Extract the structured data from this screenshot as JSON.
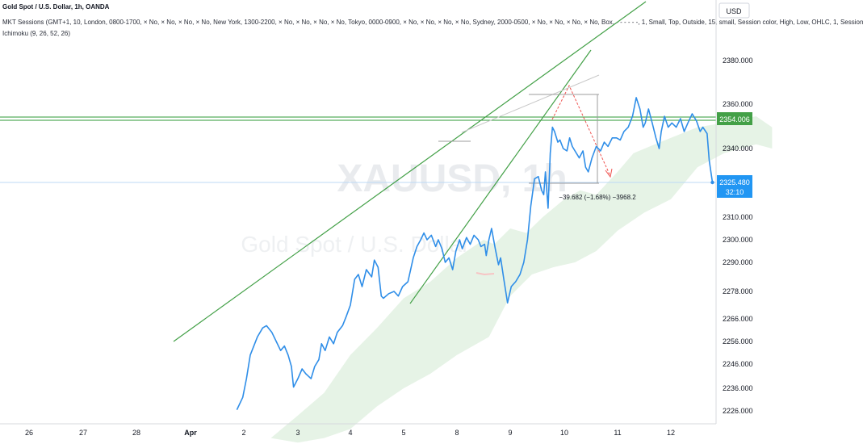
{
  "header": {
    "title": "Gold Spot / U.S. Dollar, 1h, OANDA",
    "sessions": "MKT Sessions (GMT+1, 10, London, 0800-1700, × No, × No, × No, × No, New York, 1300-2200, × No, × No, × No, × No, Tokyo, 0000-0900, × No, × No, × No, × No, Sydney, 2000-0500, × No, × No, × No, × No, Box, - - - - - -, 1, Small, Top, Outside, 15, small, Session color, High, Low, OHLC, 1, Session",
    "ichimoku": "Ichimoku (9, 26, 52, 26)"
  },
  "watermark": {
    "symbol": "XAUUSD, 1h",
    "name": "Gold Spot / U.S. Dollar"
  },
  "currency_button": "USD",
  "price_badges": {
    "green": "2354.006",
    "blue_price": "2325.480",
    "blue_timer": "32:10"
  },
  "measurement_label": "−39.682 (−1.68%) −3968.2",
  "colors": {
    "price_line": "#2f8ee8",
    "trend_lines": "#43a047",
    "cloud": "#e6f3e6",
    "level_line": "#2e9a35",
    "blue_badge": "#2196f3",
    "measure_arrow": "#ef5350"
  },
  "chart_data": {
    "type": "line",
    "title": "Gold Spot / U.S. Dollar, 1h, OANDA",
    "y_axis": {
      "ticks": [
        2226.0,
        2236.0,
        2246.0,
        2256.0,
        2266.0,
        2278.0,
        2290.0,
        2300.0,
        2310.0,
        2325.48,
        2340.0,
        2354.006,
        2360.0,
        2380.0
      ]
    },
    "x_axis": {
      "ticks": [
        "26",
        "27",
        "28",
        "Apr",
        "2",
        "3",
        "4",
        "5",
        "8",
        "9",
        "10",
        "11",
        "12"
      ]
    },
    "series": [
      {
        "values": [
          [
            3.87,
            2226.5
          ],
          [
            3.98,
            2232
          ],
          [
            4.05,
            2240
          ],
          [
            4.12,
            2250
          ],
          [
            4.25,
            2258
          ],
          [
            4.35,
            2262
          ],
          [
            4.42,
            2263
          ],
          [
            4.52,
            2260
          ],
          [
            4.6,
            2256
          ],
          [
            4.68,
            2252
          ],
          [
            4.75,
            2254
          ],
          [
            4.82,
            2250
          ],
          [
            4.88,
            2245
          ],
          [
            4.92,
            2236.5
          ],
          [
            5.0,
            2240
          ],
          [
            5.08,
            2244
          ],
          [
            5.15,
            2242
          ],
          [
            5.25,
            2240
          ],
          [
            5.32,
            2245
          ],
          [
            5.4,
            2248
          ],
          [
            5.45,
            2255
          ],
          [
            5.52,
            2252
          ],
          [
            5.6,
            2258
          ],
          [
            5.68,
            2255
          ],
          [
            5.75,
            2260
          ],
          [
            5.85,
            2263
          ],
          [
            5.92,
            2267
          ],
          [
            6.0,
            2272
          ],
          [
            6.08,
            2283
          ],
          [
            6.15,
            2285
          ],
          [
            6.22,
            2280
          ],
          [
            6.3,
            2287
          ],
          [
            6.4,
            2284
          ],
          [
            6.45,
            2291
          ],
          [
            6.52,
            2288
          ],
          [
            6.58,
            2276
          ],
          [
            6.62,
            2275
          ],
          [
            6.72,
            2277
          ],
          [
            6.82,
            2278
          ],
          [
            6.9,
            2276
          ],
          [
            6.98,
            2280
          ],
          [
            7.08,
            2282
          ],
          [
            7.18,
            2292
          ],
          [
            7.25,
            2297
          ],
          [
            7.32,
            2300
          ],
          [
            7.38,
            2303
          ],
          [
            7.44,
            2300
          ],
          [
            7.52,
            2302
          ],
          [
            7.6,
            2297
          ],
          [
            7.65,
            2300
          ],
          [
            7.72,
            2296
          ],
          [
            7.78,
            2290
          ],
          [
            7.85,
            2292
          ],
          [
            7.92,
            2287
          ],
          [
            7.98,
            2295
          ],
          [
            8.05,
            2300
          ],
          [
            8.1,
            2296
          ],
          [
            8.18,
            2301
          ],
          [
            8.25,
            2298
          ],
          [
            8.32,
            2302
          ],
          [
            8.4,
            2300
          ],
          [
            8.45,
            2297
          ],
          [
            8.52,
            2298
          ],
          [
            8.55,
            2293
          ],
          [
            8.6,
            2300
          ],
          [
            8.65,
            2305
          ],
          [
            8.72,
            2296
          ],
          [
            8.78,
            2289
          ],
          [
            8.82,
            2292
          ],
          [
            8.88,
            2283
          ],
          [
            8.95,
            2273
          ],
          [
            9.02,
            2280
          ],
          [
            9.1,
            2282
          ],
          [
            9.18,
            2285
          ],
          [
            9.25,
            2290
          ],
          [
            9.32,
            2300
          ],
          [
            9.38,
            2315
          ],
          [
            9.45,
            2327
          ],
          [
            9.52,
            2328
          ],
          [
            9.58,
            2322
          ],
          [
            9.62,
            2320
          ],
          [
            9.65,
            2330
          ],
          [
            9.7,
            2314
          ],
          [
            9.74,
            2338
          ],
          [
            9.78,
            2350
          ],
          [
            9.82,
            2348
          ],
          [
            9.88,
            2343
          ],
          [
            9.92,
            2344
          ],
          [
            9.98,
            2340
          ],
          [
            10.05,
            2339
          ],
          [
            10.1,
            2345
          ],
          [
            10.15,
            2341
          ],
          [
            10.2,
            2339
          ],
          [
            10.28,
            2336
          ],
          [
            10.35,
            2339
          ],
          [
            10.4,
            2332
          ],
          [
            10.45,
            2330
          ],
          [
            10.52,
            2336
          ],
          [
            10.6,
            2341
          ],
          [
            10.68,
            2339
          ],
          [
            10.75,
            2343
          ],
          [
            10.82,
            2341
          ],
          [
            10.9,
            2345
          ],
          [
            10.98,
            2345
          ],
          [
            11.05,
            2344
          ],
          [
            11.12,
            2348
          ],
          [
            11.2,
            2350
          ],
          [
            11.28,
            2355
          ],
          [
            11.35,
            2363
          ],
          [
            11.42,
            2358
          ],
          [
            11.48,
            2350
          ],
          [
            11.52,
            2352
          ],
          [
            11.58,
            2358
          ],
          [
            11.65,
            2352
          ],
          [
            11.72,
            2345
          ],
          [
            11.78,
            2340
          ],
          [
            11.82,
            2348
          ],
          [
            11.88,
            2355
          ],
          [
            11.95,
            2350
          ],
          [
            12.02,
            2352
          ],
          [
            12.1,
            2350
          ],
          [
            12.18,
            2354
          ],
          [
            12.25,
            2348
          ],
          [
            12.32,
            2352
          ],
          [
            12.4,
            2356
          ],
          [
            12.48,
            2353
          ],
          [
            12.55,
            2348
          ],
          [
            12.6,
            2350
          ],
          [
            12.68,
            2347
          ],
          [
            12.72,
            2335
          ],
          [
            12.78,
            2325.48
          ]
        ]
      }
    ]
  }
}
